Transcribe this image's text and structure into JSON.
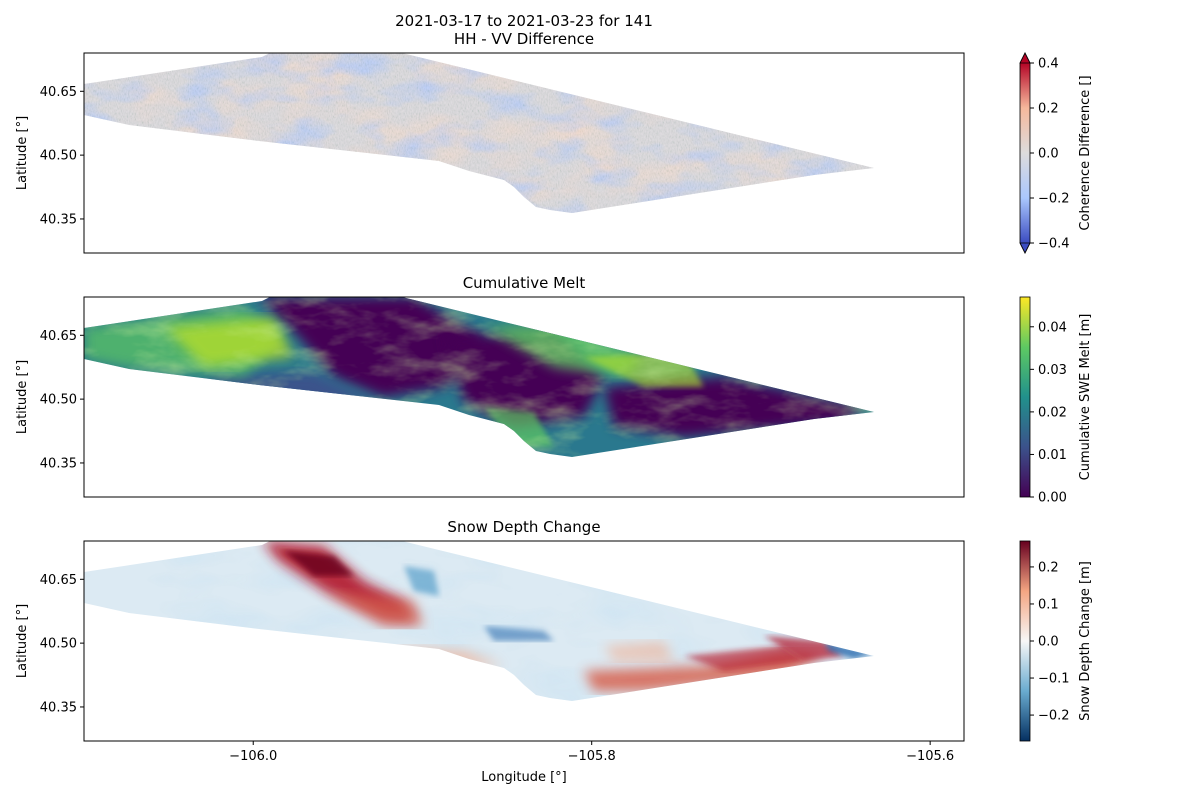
{
  "figure": {
    "suptitle_line1": "2021-03-17 to 2021-03-23 for 141",
    "xlabel": "Longitude [°]",
    "x_ticks": [
      "−106.0",
      "−105.8",
      "−105.6"
    ]
  },
  "chart_data": [
    {
      "type": "heatmap",
      "title": "HH - VV Difference",
      "ylabel": "Latitude [°]",
      "y_ticks": [
        "40.65",
        "40.50",
        "40.35"
      ],
      "xlim": [
        -106.1,
        -105.58
      ],
      "ylim": [
        40.27,
        40.74
      ],
      "colorbar": {
        "label": "Coherence Difference []",
        "colormap": "coolwarm",
        "range": [
          -0.4,
          0.4
        ],
        "extend": "both",
        "ticks": [
          "0.4",
          "0.2",
          "0.0",
          "−0.2",
          "−0.4"
        ],
        "colors": [
          "#3b4cc0",
          "#aac7fd",
          "#dddcdc",
          "#f6b89c",
          "#b40426"
        ]
      }
    },
    {
      "type": "heatmap",
      "title": "Cumulative Melt",
      "ylabel": "Latitude [°]",
      "y_ticks": [
        "40.65",
        "40.50",
        "40.35"
      ],
      "xlim": [
        -106.1,
        -105.58
      ],
      "ylim": [
        40.27,
        40.74
      ],
      "colorbar": {
        "label": "Cumulative SWE Melt [m]",
        "colormap": "viridis",
        "range": [
          0.0,
          0.047
        ],
        "ticks": [
          "0.04",
          "0.03",
          "0.02",
          "0.01",
          "0.00"
        ],
        "colors": [
          "#440154",
          "#3b528b",
          "#21918c",
          "#5ec962",
          "#fde725"
        ]
      }
    },
    {
      "type": "heatmap",
      "title": "Snow Depth Change",
      "ylabel": "Latitude [°]",
      "y_ticks": [
        "40.65",
        "40.50",
        "40.35"
      ],
      "xlim": [
        -106.1,
        -105.58
      ],
      "ylim": [
        40.27,
        40.74
      ],
      "colorbar": {
        "label": "Snow Depth Change [m]",
        "colormap": "RdBu_r",
        "range": [
          -0.27,
          0.27
        ],
        "ticks": [
          "0.2",
          "0.1",
          "0.0",
          "−0.1",
          "−0.2"
        ],
        "colors": [
          "#053061",
          "#6aacd0",
          "#f7f7f7",
          "#f4a582",
          "#67001f"
        ]
      }
    }
  ]
}
